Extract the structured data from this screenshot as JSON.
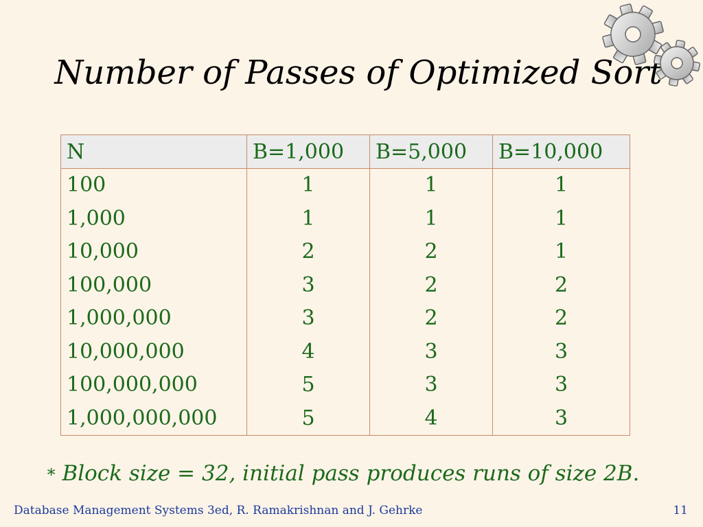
{
  "slide": {
    "title": "Number of Passes of Optimized Sort",
    "decoration_icon": "gears-icon"
  },
  "table": {
    "headers": [
      "N",
      "B=1,000",
      "B=5,000",
      "B=10,000"
    ],
    "rows": [
      [
        "100",
        "1",
        "1",
        "1"
      ],
      [
        "1,000",
        "1",
        "1",
        "1"
      ],
      [
        "10,000",
        "2",
        "2",
        "1"
      ],
      [
        "100,000",
        "3",
        "2",
        "2"
      ],
      [
        "1,000,000",
        "3",
        "2",
        "2"
      ],
      [
        "10,000,000",
        "4",
        "3",
        "3"
      ],
      [
        "100,000,000",
        "5",
        "3",
        "3"
      ],
      [
        "1,000,000,000",
        "5",
        "4",
        "3"
      ]
    ]
  },
  "footnote": {
    "star": "*",
    "text": "Block size = 32,  initial pass produces runs of size 2B."
  },
  "footer": {
    "text": "Database Management Systems 3ed,  R. Ramakrishnan and J. Gehrke",
    "page_number": "11"
  },
  "colors": {
    "background": "#fdf4e8",
    "table_text": "#1b6a1b",
    "footer_text": "#1b3a9b",
    "table_border": "#c98a64",
    "header_fill": "#ececec"
  }
}
